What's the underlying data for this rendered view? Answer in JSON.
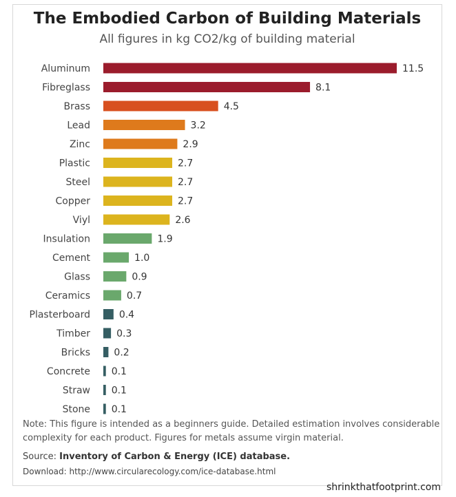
{
  "chart_data": {
    "type": "bar",
    "orientation": "horizontal",
    "title": "The Embodied Carbon of Building Materials",
    "subtitle": "All figures in kg CO2/kg of building material",
    "categories": [
      "Aluminum",
      "Fibreglass",
      "Brass",
      "Lead",
      "Zinc",
      "Plastic",
      "Steel",
      "Copper",
      "Viyl",
      "Insulation",
      "Cement",
      "Glass",
      "Ceramics",
      "Plasterboard",
      "Timber",
      "Bricks",
      "Concrete",
      "Straw",
      "Stone"
    ],
    "values": [
      11.5,
      8.1,
      4.5,
      3.2,
      2.9,
      2.7,
      2.7,
      2.7,
      2.6,
      1.9,
      1.0,
      0.9,
      0.7,
      0.4,
      0.3,
      0.2,
      0.1,
      0.1,
      0.1
    ],
    "value_labels": [
      "11.5",
      "8.1",
      "4.5",
      "3.2",
      "2.9",
      "2.7",
      "2.7",
      "2.7",
      "2.6",
      "1.9",
      "1.0",
      "0.9",
      "0.7",
      "0.4",
      "0.3",
      "0.2",
      "0.1",
      "0.1",
      "0.1"
    ],
    "colors": [
      "#9b1c2c",
      "#9b1c2c",
      "#d8501f",
      "#de7a1c",
      "#de7a1c",
      "#dcb41e",
      "#dcb41e",
      "#dcb41e",
      "#dcb41e",
      "#6aa86c",
      "#6aa86c",
      "#6aa86c",
      "#6aa86c",
      "#355e63",
      "#355e63",
      "#355e63",
      "#355e63",
      "#355e63",
      "#355e63"
    ],
    "xlim": [
      0,
      11.5
    ],
    "grid": false,
    "legend": "none"
  },
  "notes": {
    "note": "Note: This figure is intended as a beginners guide.  Detailed estimation involves considerable complexity for each product.  Figures for metals assume virgin material.",
    "source_prefix": "Source:",
    "source_name": "Inventory of Carbon & Energy (ICE) database.",
    "download": "Download: http://www.circularecology.com/ice-database.html",
    "brand": "shrinkthatfootprint.com"
  }
}
